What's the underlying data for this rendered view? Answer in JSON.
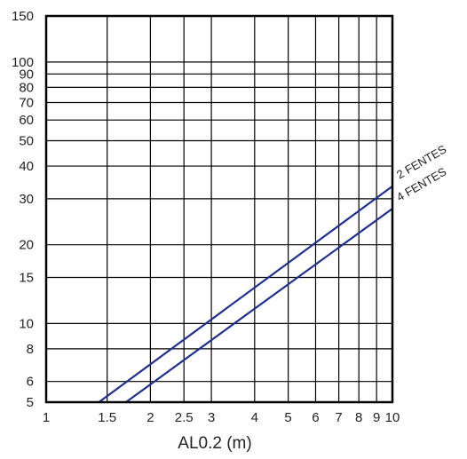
{
  "chart_data": {
    "type": "line",
    "title": "",
    "xlabel": "AL0.2 (m)",
    "ylabel": "",
    "x_scale": "log",
    "y_scale": "log",
    "xlim": [
      1,
      10
    ],
    "ylim": [
      5,
      150
    ],
    "grid": true,
    "x_ticks": [
      1,
      1.5,
      2,
      2.5,
      3,
      4,
      5,
      6,
      7,
      8,
      9,
      10
    ],
    "x_tick_labels": [
      "1",
      "1.5",
      "2",
      "2.5",
      "3",
      "4",
      "5",
      "6",
      "7",
      "8",
      "9",
      "10"
    ],
    "y_ticks": [
      5,
      6,
      8,
      10,
      15,
      20,
      30,
      40,
      50,
      60,
      70,
      80,
      90,
      100,
      150
    ],
    "y_tick_labels": [
      "5",
      "6",
      "8",
      "10",
      "15",
      "20",
      "30",
      "40",
      "50",
      "60",
      "70",
      "80",
      "90",
      "100",
      "150"
    ],
    "line_color": "#1f2f8f",
    "series": [
      {
        "name": "2 FENTES",
        "x": [
          1.42,
          10
        ],
        "y": [
          5,
          33.5
        ]
      },
      {
        "name": "4 FENTES",
        "x": [
          1.7,
          10
        ],
        "y": [
          5,
          27.5
        ]
      }
    ]
  }
}
